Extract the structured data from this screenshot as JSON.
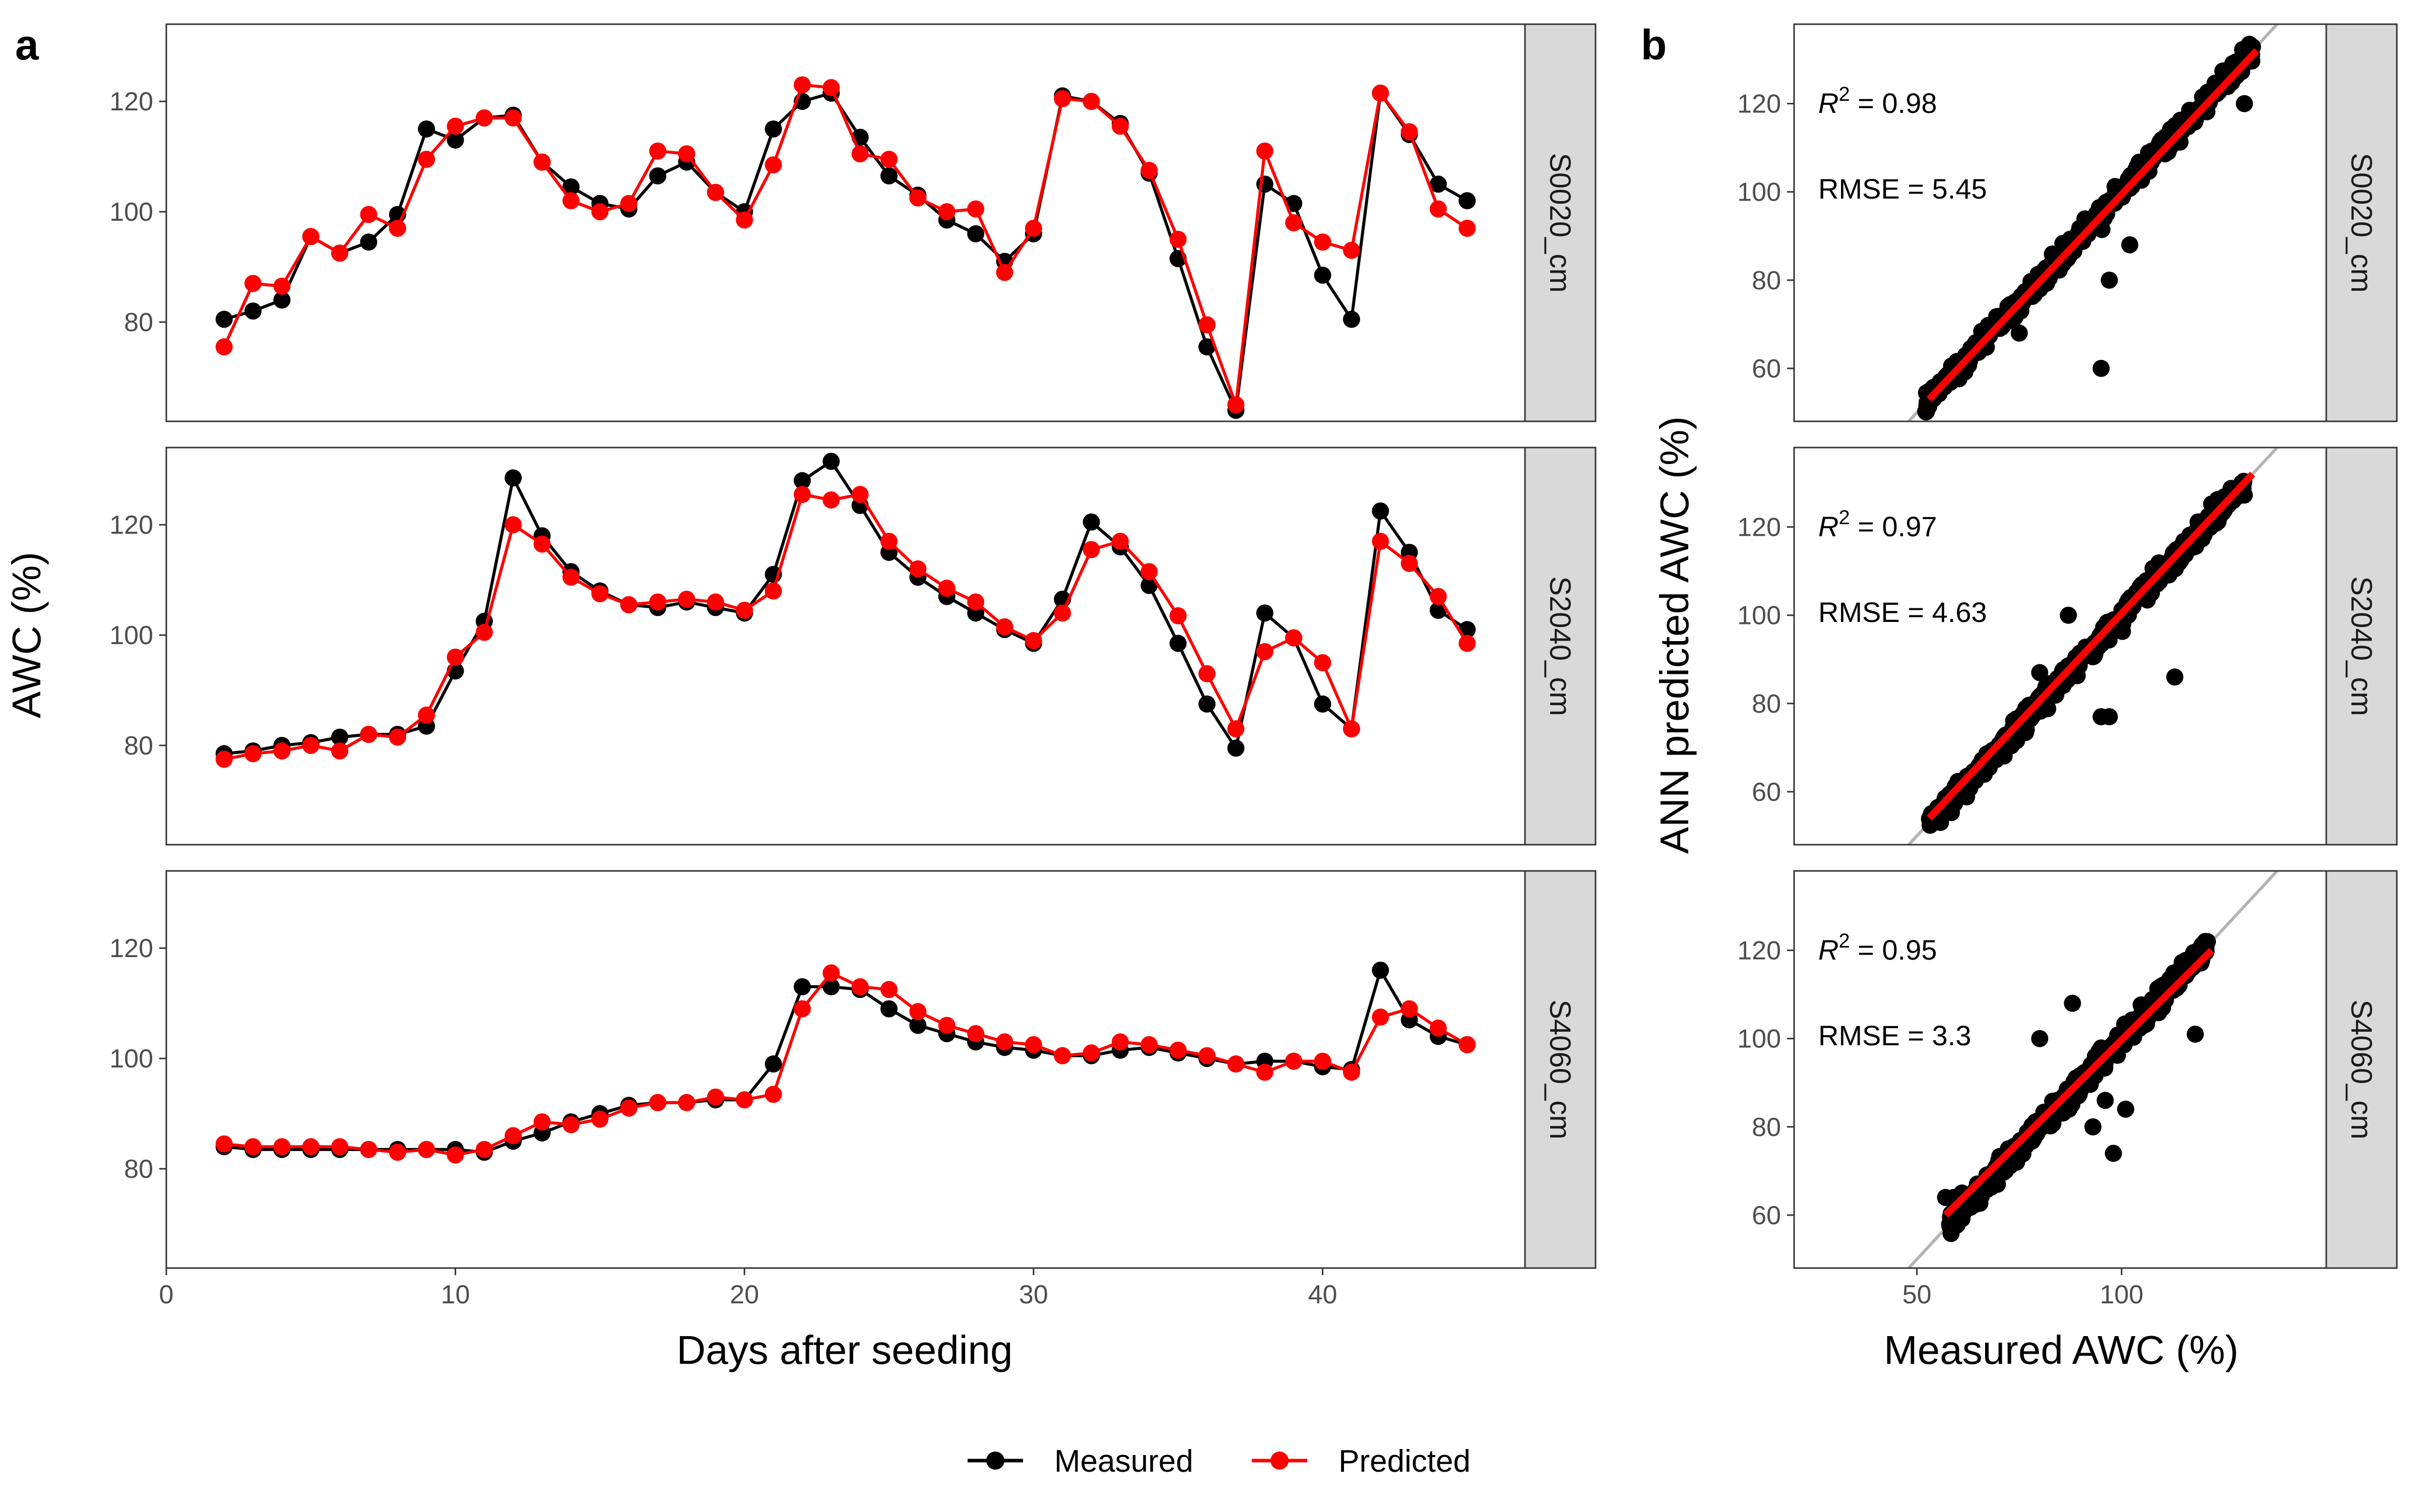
{
  "figure": {
    "panel_a_letter": "a",
    "panel_b_letter": "b"
  },
  "chart_data": [
    {
      "type": "line",
      "panel": "a",
      "xlabel": "Days after seeding",
      "ylabel": "AWC (%)",
      "xlim": [
        0,
        47
      ],
      "ylim": [
        62,
        134
      ],
      "xticks": [
        0,
        10,
        20,
        30,
        40
      ],
      "yticks": [
        80,
        100,
        120
      ],
      "grid": false,
      "legend": "bottom",
      "series_colors": {
        "Measured": "#000000",
        "Predicted": "#ff0000"
      },
      "facets": [
        {
          "strip": "S0020_cm",
          "x": [
            2,
            3,
            4,
            5,
            6,
            7,
            8,
            9,
            10,
            11,
            12,
            13,
            14,
            15,
            16,
            17,
            18,
            19,
            20,
            21,
            22,
            23,
            24,
            25,
            26,
            27,
            28,
            29,
            30,
            31,
            32,
            33,
            34,
            35,
            36,
            37,
            38,
            39,
            40,
            41,
            42,
            43,
            44,
            45
          ],
          "series": [
            {
              "name": "Measured",
              "values": [
                80.5,
                82,
                84,
                95.5,
                92.5,
                94.5,
                99.5,
                115,
                113,
                117,
                117.5,
                109,
                104.5,
                101.5,
                100.5,
                106.5,
                109,
                103.5,
                100,
                115,
                120,
                121.5,
                113.5,
                106.5,
                103,
                98.5,
                96,
                91,
                96,
                121,
                120,
                116,
                107,
                91.5,
                75.5,
                64,
                105,
                101.5,
                88.5,
                80.5,
                121.5,
                114,
                105,
                102
              ]
            },
            {
              "name": "Predicted",
              "values": [
                75.5,
                87,
                86.5,
                95.5,
                92.5,
                99.5,
                97,
                109.5,
                115.5,
                117,
                117,
                109,
                102,
                100,
                101.5,
                111,
                110.5,
                103.5,
                98.5,
                108.5,
                123,
                122.5,
                110.5,
                109.5,
                102.5,
                100,
                100.5,
                89,
                97,
                120.5,
                120,
                115.5,
                107.5,
                95,
                79.5,
                65,
                111,
                98,
                94.5,
                93,
                121.5,
                114.5,
                100.5,
                97
              ]
            }
          ]
        },
        {
          "strip": "S2040_cm",
          "x": [
            2,
            3,
            4,
            5,
            6,
            7,
            8,
            9,
            10,
            11,
            12,
            13,
            14,
            15,
            16,
            17,
            18,
            19,
            20,
            21,
            22,
            23,
            24,
            25,
            26,
            27,
            28,
            29,
            30,
            31,
            32,
            33,
            34,
            35,
            36,
            37,
            38,
            39,
            40,
            41,
            42,
            43,
            44,
            45
          ],
          "series": [
            {
              "name": "Measured",
              "values": [
                78.5,
                79,
                80,
                80.5,
                81.5,
                82,
                82,
                83.5,
                93.5,
                102.5,
                128.5,
                118,
                111.5,
                108,
                105.5,
                105,
                106,
                105,
                104,
                111,
                128,
                131.5,
                123.5,
                115,
                110.5,
                107,
                104,
                101,
                98.5,
                106.5,
                120.5,
                116,
                109,
                98.5,
                87.5,
                79.5,
                104,
                99.5,
                87.5,
                83,
                122.5,
                115,
                104.5,
                101
              ]
            },
            {
              "name": "Predicted",
              "values": [
                77.5,
                78.5,
                79,
                80,
                79,
                82,
                81.5,
                85.5,
                96,
                100.5,
                120,
                116.5,
                110.5,
                107.5,
                105.5,
                106,
                106.5,
                106,
                104.5,
                108,
                125.5,
                124.5,
                125.5,
                117,
                112,
                108.5,
                106,
                101.5,
                99,
                104,
                115.5,
                117,
                111.5,
                103.5,
                93,
                83,
                97,
                99.5,
                95,
                83,
                117,
                113,
                107,
                98.5
              ]
            }
          ]
        },
        {
          "strip": "S4060_cm",
          "x": [
            2,
            3,
            4,
            5,
            6,
            7,
            8,
            9,
            10,
            11,
            12,
            13,
            14,
            15,
            16,
            17,
            18,
            19,
            20,
            21,
            22,
            23,
            24,
            25,
            26,
            27,
            28,
            29,
            30,
            31,
            32,
            33,
            34,
            35,
            36,
            37,
            38,
            39,
            40,
            41,
            42,
            43,
            44,
            45
          ],
          "series": [
            {
              "name": "Measured",
              "values": [
                84,
                83.5,
                83.5,
                83.5,
                83.5,
                83.5,
                83.5,
                83.5,
                83.5,
                83,
                85,
                86.5,
                88.5,
                90,
                91.5,
                92,
                92,
                92.5,
                92.5,
                99,
                113,
                113,
                112.5,
                109,
                106,
                104.5,
                103,
                102,
                101.5,
                100.5,
                100.5,
                101.5,
                102,
                101,
                100,
                99,
                99.5,
                99.5,
                98.5,
                98,
                116,
                107,
                104,
                102.5
              ]
            },
            {
              "name": "Predicted",
              "values": [
                84.5,
                84,
                84,
                84,
                84,
                83.5,
                83,
                83.5,
                82.5,
                83.5,
                86,
                88.5,
                88,
                89,
                91,
                92,
                92,
                93,
                92.5,
                93.5,
                109,
                115.5,
                113,
                112.5,
                108.5,
                106,
                104.5,
                103,
                102.5,
                100.5,
                101,
                103,
                102.5,
                101.5,
                100.5,
                99,
                97.5,
                99.5,
                99.5,
                97.5,
                107.5,
                109,
                105.5,
                102.5
              ]
            }
          ]
        }
      ]
    },
    {
      "type": "scatter",
      "panel": "b",
      "xlabel": "Measured AWC (%)",
      "ylabel": "ANN predicted AWC (%)",
      "xlim": [
        20,
        150
      ],
      "ylim": [
        48,
        138
      ],
      "xticks": [
        50,
        100
      ],
      "yticks": [
        60,
        80,
        100,
        120
      ],
      "reference_line": "1:1",
      "reference_color": "#b3b3b3",
      "fit_color": "#ff0000",
      "point_color": "#000000",
      "facets": [
        {
          "strip": "S0020_cm",
          "r2_label": "R",
          "r2_value": " = 0.98",
          "rmse": "RMSE = 5.45",
          "fit": {
            "x": [
              53,
              133
            ],
            "y": [
              53,
              132
            ]
          },
          "cloud_range": [
            52,
            132
          ],
          "outliers": {
            "x": [
              57,
              75,
              80,
              95,
              97,
              102,
              130
            ],
            "y": [
              58,
              68,
              78,
              60,
              80,
              88,
              120
            ]
          }
        },
        {
          "strip": "S2040_cm",
          "r2_label": "R",
          "r2_value": " = 0.97",
          "rmse": "RMSE = 4.63",
          "fit": {
            "x": [
              53,
              132
            ],
            "y": [
              54,
              132
            ]
          },
          "cloud_range": [
            53,
            130
          ],
          "outliers": {
            "x": [
              80,
              87,
              95,
              97,
              113
            ],
            "y": [
              87,
              100,
              77,
              77,
              86
            ]
          }
        },
        {
          "strip": "S4060_cm",
          "r2_label": "R",
          "r2_value": " = 0.95",
          "rmse": "RMSE = 3.3",
          "fit": {
            "x": [
              57,
              122
            ],
            "y": [
              60,
              120
            ]
          },
          "cloud_range": [
            58,
            121
          ],
          "outliers": {
            "x": [
              57,
              59,
              61,
              80,
              88,
              93,
              96,
              101,
              98,
              110,
              118
            ],
            "y": [
              64,
              64,
              65,
              100,
              108,
              80,
              86,
              84,
              74,
              107,
              101
            ]
          }
        }
      ]
    }
  ],
  "legend": {
    "items": [
      {
        "label": "Measured",
        "color": "#000000"
      },
      {
        "label": "Predicted",
        "color": "#ff0000"
      }
    ]
  }
}
